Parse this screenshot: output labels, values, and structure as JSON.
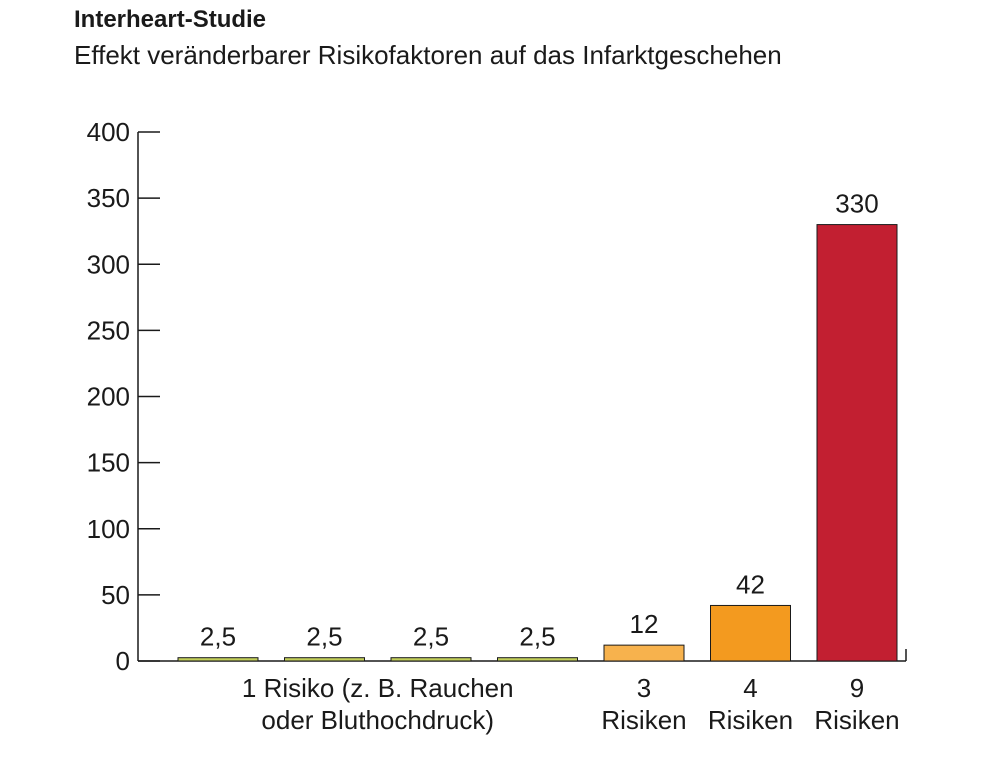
{
  "chart_data": {
    "type": "bar",
    "title": "Interheart-Studie",
    "subtitle": "Effekt veränderbarer Risikofaktoren auf das Infarktgeschehen",
    "ylim": [
      0,
      400
    ],
    "yticks": [
      0,
      50,
      100,
      150,
      200,
      250,
      300,
      350,
      400
    ],
    "values": [
      2.5,
      2.5,
      2.5,
      2.5,
      12,
      42,
      330
    ],
    "value_labels": [
      "2,5",
      "2,5",
      "2,5",
      "2,5",
      "12",
      "42",
      "330"
    ],
    "bar_colors": [
      "#c3cf5a",
      "#c3cf5a",
      "#c3cf5a",
      "#c3cf5a",
      "#f7b24d",
      "#f39a1f",
      "#c21f31"
    ],
    "category_groups": [
      {
        "lines": [
          "1 Risiko (z. B. Rauchen",
          "oder Bluthochdruck)"
        ],
        "bars": [
          0,
          1,
          2,
          3
        ]
      },
      {
        "lines": [
          "3",
          "Risiken"
        ],
        "bars": [
          4
        ]
      },
      {
        "lines": [
          "4",
          "Risiken"
        ],
        "bars": [
          5
        ]
      },
      {
        "lines": [
          "9",
          "Risiken"
        ],
        "bars": [
          6
        ]
      }
    ],
    "grid": false,
    "legend": "none"
  }
}
